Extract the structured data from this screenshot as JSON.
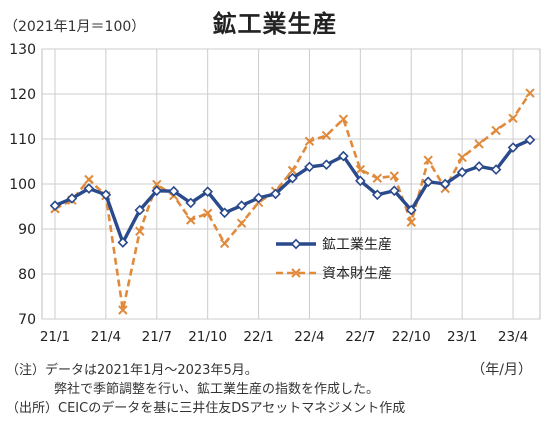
{
  "chart_data": {
    "type": "line",
    "title": "鉱工業生産",
    "unit_note": "（2021年1月＝100）",
    "period_unit": "（年/月）",
    "categories": [
      "21/1",
      "21/2",
      "21/3",
      "21/4",
      "21/5",
      "21/6",
      "21/7",
      "21/8",
      "21/9",
      "21/10",
      "21/11",
      "21/12",
      "22/1",
      "22/2",
      "22/3",
      "22/4",
      "22/5",
      "22/6",
      "22/7",
      "22/8",
      "22/9",
      "22/10",
      "22/11",
      "22/12",
      "23/1",
      "23/2",
      "23/3",
      "23/4",
      "23/5"
    ],
    "tick_labels": [
      "21/1",
      "21/4",
      "21/7",
      "21/10",
      "22/1",
      "22/4",
      "22/7",
      "22/10",
      "23/1",
      "23/4"
    ],
    "ylim": [
      70,
      130
    ],
    "yticks": [
      70,
      80,
      90,
      100,
      110,
      120,
      130
    ],
    "grid": true,
    "legend_position": "center-right",
    "series": [
      {
        "name": "鉱工業生産",
        "color": "#2a4a8c",
        "style": "solid-diamond",
        "values": [
          95.2,
          96.8,
          99.0,
          97.6,
          87.0,
          94.2,
          98.5,
          98.4,
          95.8,
          98.3,
          93.6,
          95.2,
          96.9,
          97.8,
          101.3,
          103.8,
          104.3,
          106.2,
          100.7,
          97.6,
          98.5,
          94.2,
          100.5,
          100.0,
          102.6,
          103.9,
          103.2,
          108.1,
          109.8
        ]
      },
      {
        "name": "資本財生産",
        "color": "#e08a3c",
        "style": "dashed-x",
        "values": [
          94.5,
          96.4,
          101.0,
          97.4,
          72.0,
          89.5,
          99.9,
          97.4,
          92.0,
          93.5,
          86.8,
          91.3,
          95.9,
          98.4,
          103.0,
          109.5,
          110.8,
          114.4,
          103.2,
          101.3,
          101.8,
          91.5,
          105.3,
          99.0,
          105.9,
          108.9,
          111.9,
          114.6,
          120.2
        ]
      }
    ]
  },
  "notes": {
    "line1": "（注）データは2021年1月～2023年5月。",
    "line2": "弊社で季節調整を行い、鉱工業生産の指数を作成した。",
    "line3": "（出所）CEICのデータを基に三井住友DSアセットマネジメント作成"
  }
}
